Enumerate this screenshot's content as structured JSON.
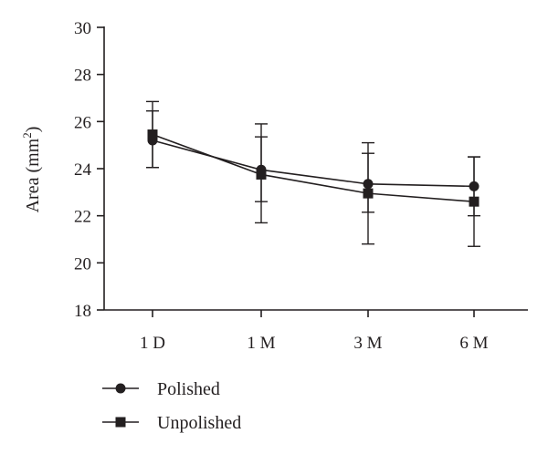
{
  "chart_data": {
    "type": "line",
    "title": "",
    "xlabel": "",
    "ylabel": "Area (mm",
    "ylabel_sup": "2",
    "ylabel_close": ")",
    "categories": [
      "1 D",
      "1 M",
      "3 M",
      "6 M"
    ],
    "ylim": [
      18,
      30
    ],
    "yticks": [
      18,
      20,
      22,
      24,
      26,
      28,
      30
    ],
    "grid": false,
    "legend_position": "bottom-left",
    "series": [
      {
        "name": "Polished",
        "marker": "circle",
        "color": "#231f20",
        "values": [
          25.2,
          23.95,
          23.35,
          23.25
        ],
        "err_low": [
          24.05,
          22.6,
          22.15,
          22.0
        ],
        "err_high": [
          26.45,
          25.35,
          24.65,
          24.5
        ]
      },
      {
        "name": "Unpolished",
        "marker": "square",
        "color": "#231f20",
        "values": [
          25.45,
          23.75,
          22.95,
          22.6
        ],
        "err_low": [
          24.05,
          21.7,
          20.8,
          20.7
        ],
        "err_high": [
          26.85,
          25.9,
          25.1,
          24.5
        ]
      }
    ]
  }
}
